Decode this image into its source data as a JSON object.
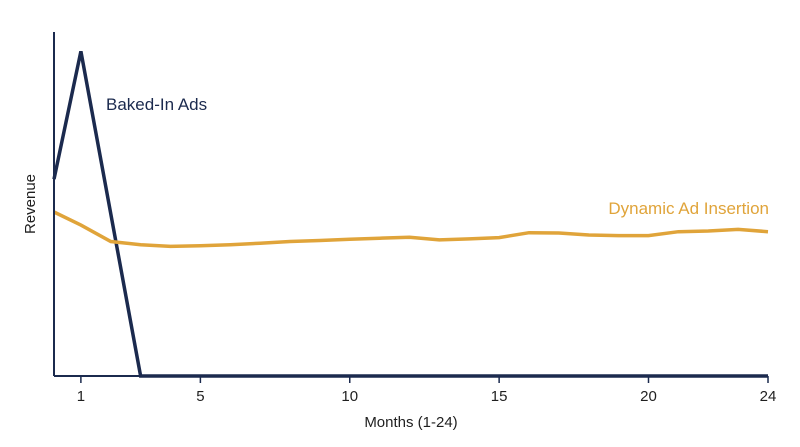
{
  "chart_data": {
    "type": "line",
    "title": "",
    "xlabel": "Months (1-24)",
    "ylabel": "Revenue",
    "xlim": [
      0.1,
      24
    ],
    "ylim": [
      0,
      1
    ],
    "x_ticks": [
      1,
      5,
      10,
      15,
      20,
      24
    ],
    "grid": false,
    "colors": {
      "baked_in": "#1b2a4e",
      "dynamic": "#e0a43a",
      "axis": "#1b2a4e"
    },
    "series": [
      {
        "name": "Baked-In Ads",
        "color": "#1b2a4e",
        "x": [
          0.1,
          1,
          3,
          24
        ],
        "y": [
          0.6,
          0.99,
          0,
          0
        ]
      },
      {
        "name": "Dynamic Ad Insertion",
        "color": "#e0a43a",
        "x": [
          0.1,
          1,
          2,
          3,
          4,
          5,
          6,
          7,
          8,
          9,
          10,
          11,
          12,
          13,
          14,
          15,
          16,
          17,
          18,
          19,
          20,
          21,
          22,
          23,
          24
        ],
        "y": [
          0.5,
          0.46,
          0.41,
          0.4,
          0.395,
          0.397,
          0.4,
          0.405,
          0.41,
          0.413,
          0.417,
          0.42,
          0.423,
          0.415,
          0.418,
          0.422,
          0.437,
          0.436,
          0.43,
          0.428,
          0.428,
          0.44,
          0.442,
          0.447,
          0.44
        ]
      }
    ]
  }
}
